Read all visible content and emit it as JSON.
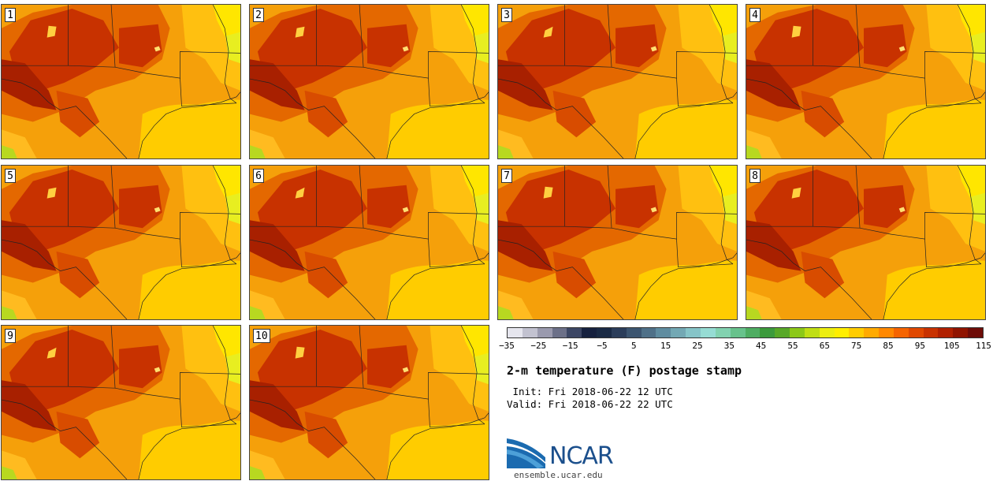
{
  "panels": [
    {
      "label": "1"
    },
    {
      "label": "2"
    },
    {
      "label": "3"
    },
    {
      "label": "4"
    },
    {
      "label": "5"
    },
    {
      "label": "6"
    },
    {
      "label": "7"
    },
    {
      "label": "8"
    },
    {
      "label": "9"
    },
    {
      "label": "10"
    }
  ],
  "colorbar": {
    "colors": [
      "#e6e6ee",
      "#c2c2d0",
      "#9a9aae",
      "#6c7088",
      "#3c4664",
      "#16213f",
      "#1a2a45",
      "#2b3d5a",
      "#3c5570",
      "#4f7088",
      "#5f8ca0",
      "#73a8b4",
      "#86c4c8",
      "#96dcd4",
      "#82d2b0",
      "#68c28c",
      "#4ead62",
      "#3c9a3c",
      "#58a828",
      "#8cc818",
      "#c0de14",
      "#ecee10",
      "#ffee00",
      "#ffcc00",
      "#ffaa00",
      "#ff8800",
      "#f56400",
      "#e04800",
      "#c83200",
      "#b02000",
      "#901400",
      "#6e0c08"
    ],
    "ticks": [
      "−35",
      "−25",
      "−15",
      "−5",
      "5",
      "15",
      "25",
      "35",
      "45",
      "55",
      "65",
      "75",
      "85",
      "95",
      "105",
      "115"
    ]
  },
  "title": "2-m temperature (F) postage stamp",
  "init_line": " Init: Fri 2018-06-22 12 UTC",
  "valid_line": "Valid: Fri 2018-06-22 22 UTC",
  "logo": {
    "text": "NCAR"
  },
  "site": "ensemble.ucar.edu"
}
